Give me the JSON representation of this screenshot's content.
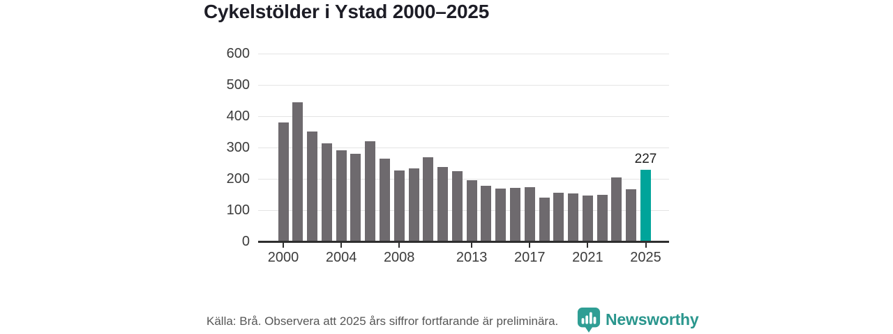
{
  "chart_data": {
    "type": "bar",
    "title": "Cykelstölder i Ystad 2000–2025",
    "categories": [
      2000,
      2001,
      2002,
      2003,
      2004,
      2005,
      2006,
      2007,
      2008,
      2009,
      2010,
      2011,
      2012,
      2013,
      2014,
      2015,
      2016,
      2017,
      2018,
      2019,
      2020,
      2021,
      2022,
      2023,
      2024,
      2025
    ],
    "values": [
      377,
      443,
      348,
      311,
      288,
      277,
      317,
      263,
      225,
      232,
      267,
      236,
      223,
      194,
      175,
      166,
      168,
      172,
      137,
      154,
      152,
      144,
      146,
      203,
      165,
      227
    ],
    "xlabel": "",
    "ylabel": "",
    "ylim": [
      0,
      600
    ],
    "y_ticks": [
      0,
      100,
      200,
      300,
      400,
      500,
      600
    ],
    "x_tick_labels": [
      "2000",
      "2004",
      "2008",
      "2013",
      "2017",
      "2021",
      "2025"
    ],
    "grid": "horizontal",
    "legend": "none",
    "bar_color": "#6e6a6e",
    "highlight": {
      "year": 2025,
      "value": 227,
      "label": "227",
      "color": "#00a49a"
    }
  },
  "footer": {
    "source_note": "Källa: Brå. Observera att 2025 års siffror fortfarande är preliminära.",
    "brand": {
      "name": "Newsworthy",
      "icon": "newsworthy-pin-barchart-icon",
      "icon_color": "#2f9e94",
      "text_color": "#2a968d"
    }
  }
}
